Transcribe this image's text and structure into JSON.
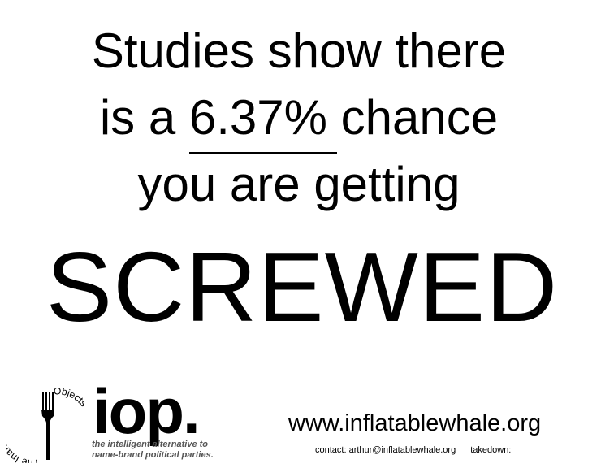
{
  "headline": {
    "line1": "Studies show there",
    "line2_pre": "is a ",
    "line2_pct": "6.37%",
    "line2_post": " chance",
    "line3": "you are getting"
  },
  "shout": "SCREWED",
  "logo": {
    "ring_text_left": "The Inanimate",
    "ring_text_right": "Objects Party",
    "wordmark": "iop.",
    "tagline_line1": "the intelligent alternative to",
    "tagline_line2": "name-brand political parties.",
    "icon": "fork-icon"
  },
  "footer": {
    "website": "www.inflatablewhale.org",
    "contact": "contact: arthur@inflatablewhale.org",
    "takedown": "takedown:"
  },
  "colors": {
    "text": "#000000",
    "background": "#ffffff",
    "tagline": "#555555"
  }
}
